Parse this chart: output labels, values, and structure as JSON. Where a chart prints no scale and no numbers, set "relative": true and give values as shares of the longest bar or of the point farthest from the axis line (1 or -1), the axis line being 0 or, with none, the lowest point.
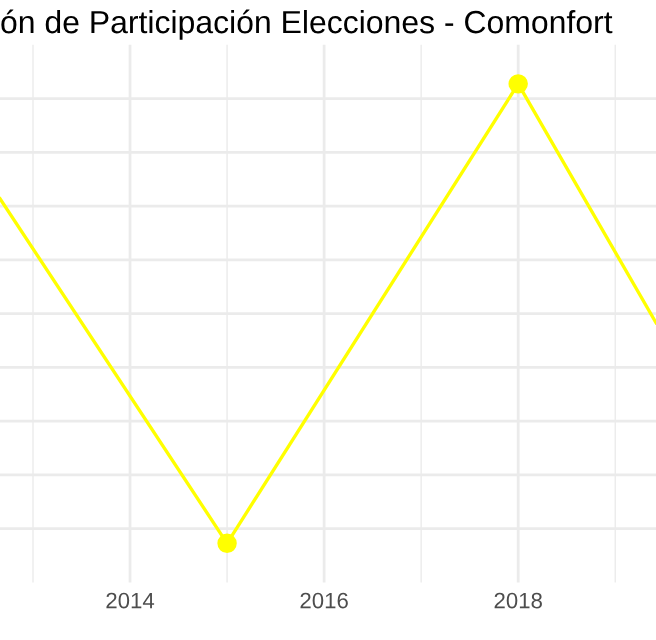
{
  "chart_data": {
    "type": "line",
    "title": "ón de Participación Elecciones - Comonfort",
    "relative": true,
    "x": [
      2012.66,
      2015,
      2018,
      2019.42
    ],
    "series": [
      {
        "color": "#ffff00",
        "values": [
          0.75,
          0,
          1,
          0.48
        ]
      }
    ],
    "xlim": [
      2012.66,
      2019.42
    ],
    "xticks": [
      2014,
      2016,
      2018
    ],
    "grid": true,
    "marker": "circle",
    "line_style": "solid",
    "tick_labels": "x"
  }
}
